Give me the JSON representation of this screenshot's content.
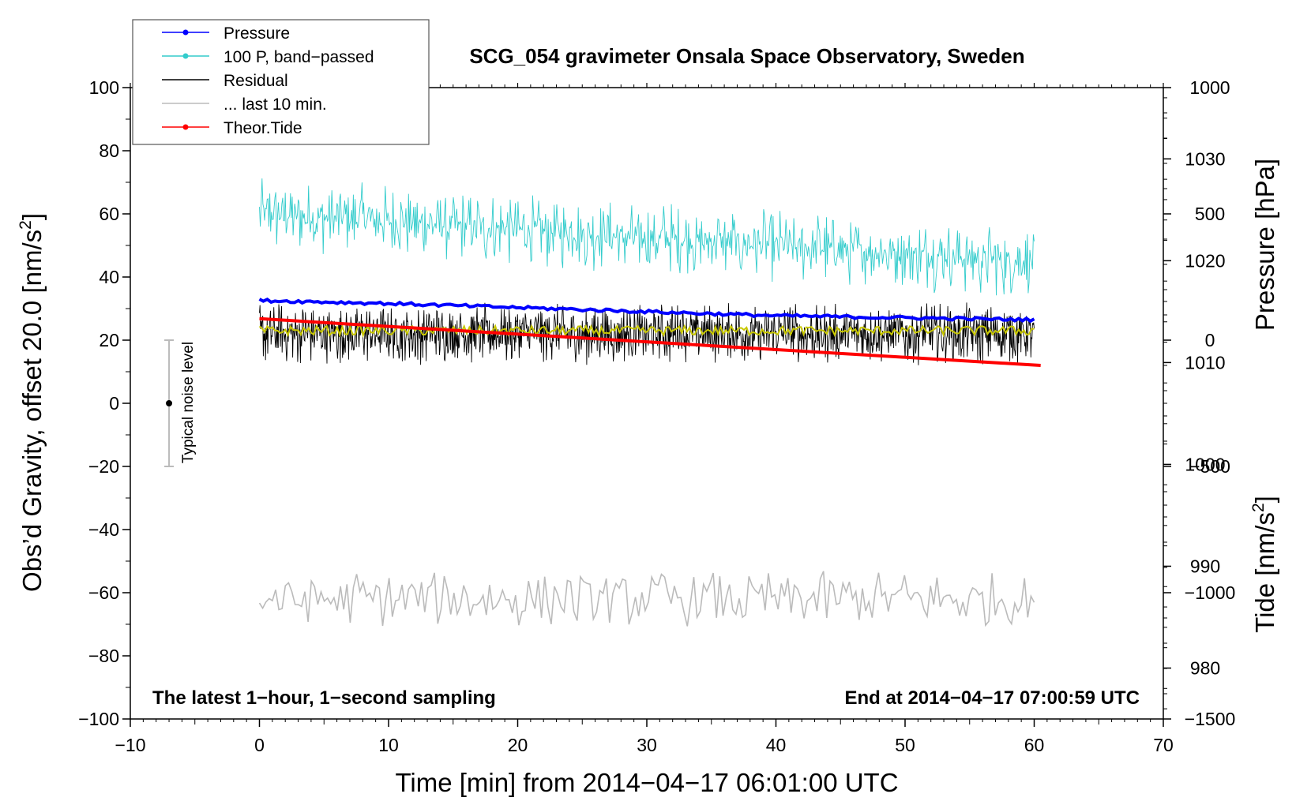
{
  "chart_data": {
    "type": "line",
    "title": "SCG_054 gravimeter Onsala Space Observatory, Sweden",
    "xlabel": "Time [min] from 2014−04−17 06:01:00 UTC",
    "ylabel_prefix": "Obs’d Gravity, offset 20.0 [nm/s",
    "ylabel_sup": "2",
    "ylabel_suffix": "]",
    "xlim": [
      -10,
      70
    ],
    "ylim": [
      -100,
      100
    ],
    "xticks": [
      -10,
      0,
      10,
      20,
      30,
      40,
      50,
      60,
      70
    ],
    "xtick_labels": [
      "−10",
      "0",
      "10",
      "20",
      "30",
      "40",
      "50",
      "60",
      "70"
    ],
    "yticks": [
      -100,
      -80,
      -60,
      -40,
      -20,
      0,
      20,
      40,
      60,
      80,
      100
    ],
    "ytick_labels": [
      "−100",
      "−80",
      "−60",
      "−40",
      "−20",
      "0",
      "20",
      "40",
      "60",
      "80",
      "100"
    ],
    "pressure_axis": {
      "label": "Pressure [hPa]",
      "ticks": [
        980,
        990,
        1000,
        1010,
        1020,
        1030
      ],
      "tick_labels": [
        "980",
        "990",
        "1000",
        "1010",
        "1020",
        "1030"
      ],
      "range": [
        975,
        1037
      ]
    },
    "tide_axis": {
      "label_prefix": "Tide [nm/s",
      "label_sup": "2",
      "label_suffix": "]",
      "ticks": [
        -1500,
        -1000,
        -500,
        0,
        500,
        1000
      ],
      "tick_labels": [
        "−1500",
        "−1000",
        "−500",
        "0",
        "500",
        "1000"
      ],
      "range": [
        -1500,
        1000
      ]
    },
    "legend": {
      "position": "top-left",
      "entries": [
        {
          "label": "Pressure",
          "color": "#0000ff",
          "marker": true
        },
        {
          "label": "100 P, band−passed",
          "color": "#33cccc",
          "marker": true
        },
        {
          "label": "Residual",
          "color": "#000000",
          "marker": false
        },
        {
          "label": "... last 10 min.",
          "color": "#bbbbbb",
          "marker": false
        },
        {
          "label": "Theor.Tide",
          "color": "#ff0000",
          "marker": true
        }
      ]
    },
    "series": [
      {
        "name": "Pressure",
        "color": "#0000ff",
        "axis": "pressure",
        "x": [
          0,
          10,
          20,
          30,
          40,
          50,
          60
        ],
        "values": [
          1016.1,
          1015.8,
          1015.4,
          1015.0,
          1014.6,
          1014.4,
          1014.2
        ]
      },
      {
        "name": "100 P, band−passed",
        "color": "#33cccc",
        "axis": "gravity",
        "x_range": [
          0,
          60
        ],
        "mean_start": 60,
        "mean_end": 45,
        "amplitude": 12
      },
      {
        "name": "Residual",
        "color": "#000000",
        "axis": "gravity",
        "x_range": [
          0,
          60
        ],
        "mean": 22,
        "amplitude": 10
      },
      {
        "name": "Residual smoothed",
        "color": "#c8c800",
        "axis": "gravity",
        "x_range": [
          0,
          60
        ],
        "mean": 23,
        "amplitude": 1.5
      },
      {
        "name": "... last 10 min.",
        "color": "#bbbbbb",
        "axis": "gravity",
        "x_range": [
          0,
          60
        ],
        "mean": -62,
        "amplitude": 8
      },
      {
        "name": "Theor.Tide",
        "color": "#ff0000",
        "axis": "tide",
        "x": [
          0,
          60.5
        ],
        "values": [
          85,
          -100
        ]
      }
    ],
    "noise_bar": {
      "label": "Typical noise level",
      "x": -7,
      "center": 0,
      "low": -20,
      "high": 20
    },
    "annotations": {
      "bottom_left": "The latest 1−hour, 1−second sampling",
      "bottom_right": "End at 2014−04−17 07:00:59 UTC"
    }
  }
}
